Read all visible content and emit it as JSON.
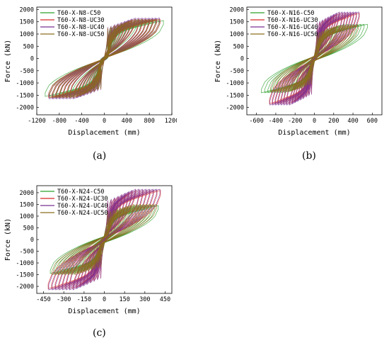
{
  "labels": {
    "a": "(a)",
    "b": "(b)",
    "c": "(c)"
  },
  "chart_data": [
    {
      "type": "line",
      "xlabel": "Displacement (mm)",
      "ylabel": "Force (kN)",
      "xlim": [
        -1200,
        1200
      ],
      "ylim": [
        -2300,
        2100
      ],
      "xticks": [
        -1200,
        -800,
        -400,
        0,
        400,
        800,
        1200
      ],
      "yticks": [
        -2000,
        -1500,
        -1000,
        -500,
        0,
        500,
        1000,
        1500,
        2000
      ],
      "legend_position": "top-left",
      "series": [
        {
          "name": "T60-X-N8-C50",
          "color": "#2ca02c",
          "peak_force": 1550,
          "yield_force": 600,
          "max_disp": 1050
        },
        {
          "name": "T60-X-N8-UC30",
          "color": "#d62728",
          "peak_force": 1600,
          "yield_force": 650,
          "max_disp": 1000
        },
        {
          "name": "T60-X-N8-UC40",
          "color": "#7b3294",
          "peak_force": 1650,
          "yield_force": 650,
          "max_disp": 1000
        },
        {
          "name": "T60-X-N8-UC50",
          "color": "#8c6d1f",
          "peak_force": 1600,
          "yield_force": 650,
          "max_disp": 1000
        }
      ]
    },
    {
      "type": "line",
      "xlabel": "Displacement (mm)",
      "ylabel": "Force (kN)",
      "xlim": [
        -700,
        700
      ],
      "ylim": [
        -2300,
        2100
      ],
      "xticks": [
        -600,
        -400,
        -200,
        0,
        200,
        400,
        600
      ],
      "yticks": [
        -2000,
        -1500,
        -1000,
        -500,
        0,
        500,
        1000,
        1500,
        2000
      ],
      "legend_position": "top-left",
      "series": [
        {
          "name": "T60-X-N16-C50",
          "color": "#2ca02c",
          "peak_force": 1400,
          "yield_force": 700,
          "max_disp": 550
        },
        {
          "name": "T60-X-N16-UC30",
          "color": "#d62728",
          "peak_force": 1850,
          "yield_force": 700,
          "max_disp": 470
        },
        {
          "name": "T60-X-N16-UC40",
          "color": "#7b3294",
          "peak_force": 1900,
          "yield_force": 700,
          "max_disp": 470
        },
        {
          "name": "T60-X-N16-UC50",
          "color": "#8c6d1f",
          "peak_force": 1350,
          "yield_force": 700,
          "max_disp": 470
        }
      ]
    },
    {
      "type": "line",
      "xlabel": "Displacement (mm)",
      "ylabel": "Force (kN)",
      "xlim": [
        -500,
        500
      ],
      "ylim": [
        -2300,
        2300
      ],
      "xticks": [
        -450,
        -300,
        -150,
        0,
        150,
        300,
        450
      ],
      "yticks": [
        -2000,
        -1500,
        -1000,
        -500,
        0,
        500,
        1000,
        1500,
        2000
      ],
      "legend_position": "top-left",
      "series": [
        {
          "name": "T60-X-N24-C50",
          "color": "#2ca02c",
          "peak_force": 1450,
          "yield_force": 800,
          "max_disp": 400
        },
        {
          "name": "T60-X-N24-UC30",
          "color": "#d62728",
          "peak_force": 2100,
          "yield_force": 800,
          "max_disp": 420
        },
        {
          "name": "T60-X-N24-UC40",
          "color": "#7b3294",
          "peak_force": 2150,
          "yield_force": 800,
          "max_disp": 420
        },
        {
          "name": "T60-X-N24-UC50",
          "color": "#8c6d1f",
          "peak_force": 1500,
          "yield_force": 800,
          "max_disp": 400
        }
      ]
    }
  ]
}
